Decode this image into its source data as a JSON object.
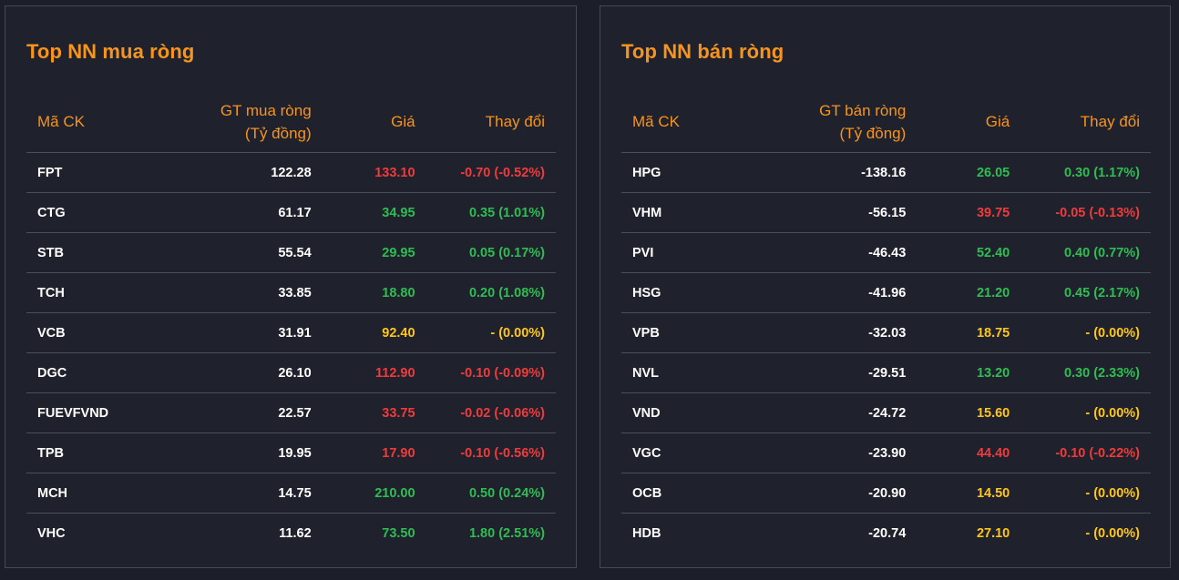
{
  "colors": {
    "accent": "#f7941d",
    "up": "#2fbd52",
    "down": "#ef3b3b",
    "ref": "#ffc61a",
    "text": "#ffffff",
    "background": "#1c1f2a"
  },
  "buy": {
    "title": "Top NN mua ròng",
    "headers": {
      "code": "Mã CK",
      "value_line1": "GT mua ròng",
      "value_line2": "(Tỷ đồng)",
      "price": "Giá",
      "change": "Thay đổi"
    },
    "rows": [
      {
        "code": "FPT",
        "value": "122.28",
        "price": "133.10",
        "change": "-0.70 (-0.52%)",
        "status": "down"
      },
      {
        "code": "CTG",
        "value": "61.17",
        "price": "34.95",
        "change": "0.35 (1.01%)",
        "status": "up"
      },
      {
        "code": "STB",
        "value": "55.54",
        "price": "29.95",
        "change": "0.05 (0.17%)",
        "status": "up"
      },
      {
        "code": "TCH",
        "value": "33.85",
        "price": "18.80",
        "change": "0.20 (1.08%)",
        "status": "up"
      },
      {
        "code": "VCB",
        "value": "31.91",
        "price": "92.40",
        "change": "- (0.00%)",
        "status": "ref"
      },
      {
        "code": "DGC",
        "value": "26.10",
        "price": "112.90",
        "change": "-0.10 (-0.09%)",
        "status": "down"
      },
      {
        "code": "FUEVFVND",
        "value": "22.57",
        "price": "33.75",
        "change": "-0.02 (-0.06%)",
        "status": "down"
      },
      {
        "code": "TPB",
        "value": "19.95",
        "price": "17.90",
        "change": "-0.10 (-0.56%)",
        "status": "down"
      },
      {
        "code": "MCH",
        "value": "14.75",
        "price": "210.00",
        "change": "0.50 (0.24%)",
        "status": "up"
      },
      {
        "code": "VHC",
        "value": "11.62",
        "price": "73.50",
        "change": "1.80 (2.51%)",
        "status": "up"
      }
    ]
  },
  "sell": {
    "title": "Top NN bán ròng",
    "headers": {
      "code": "Mã CK",
      "value_line1": "GT bán ròng",
      "value_line2": "(Tỷ đồng)",
      "price": "Giá",
      "change": "Thay đổi"
    },
    "rows": [
      {
        "code": "HPG",
        "value": "-138.16",
        "price": "26.05",
        "change": "0.30 (1.17%)",
        "status": "up"
      },
      {
        "code": "VHM",
        "value": "-56.15",
        "price": "39.75",
        "change": "-0.05 (-0.13%)",
        "status": "down"
      },
      {
        "code": "PVI",
        "value": "-46.43",
        "price": "52.40",
        "change": "0.40 (0.77%)",
        "status": "up"
      },
      {
        "code": "HSG",
        "value": "-41.96",
        "price": "21.20",
        "change": "0.45 (2.17%)",
        "status": "up"
      },
      {
        "code": "VPB",
        "value": "-32.03",
        "price": "18.75",
        "change": "- (0.00%)",
        "status": "ref"
      },
      {
        "code": "NVL",
        "value": "-29.51",
        "price": "13.20",
        "change": "0.30 (2.33%)",
        "status": "up"
      },
      {
        "code": "VND",
        "value": "-24.72",
        "price": "15.60",
        "change": "- (0.00%)",
        "status": "ref"
      },
      {
        "code": "VGC",
        "value": "-23.90",
        "price": "44.40",
        "change": "-0.10 (-0.22%)",
        "status": "down"
      },
      {
        "code": "OCB",
        "value": "-20.90",
        "price": "14.50",
        "change": "- (0.00%)",
        "status": "ref"
      },
      {
        "code": "HDB",
        "value": "-20.74",
        "price": "27.10",
        "change": "- (0.00%)",
        "status": "ref"
      }
    ]
  }
}
